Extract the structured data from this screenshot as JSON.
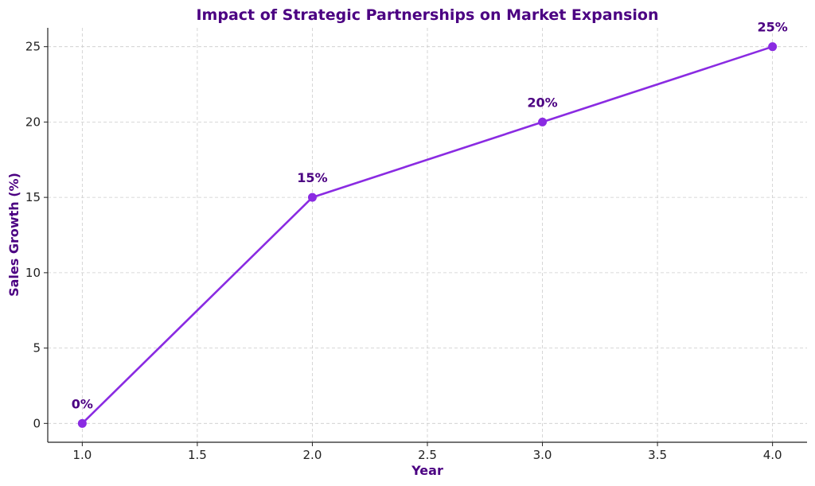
{
  "chart_data": {
    "type": "line",
    "title": "Impact of Strategic Partnerships on Market Expansion",
    "xlabel": "Year",
    "ylabel": "Sales Growth (%)",
    "xlim": [
      0.85,
      4.15
    ],
    "ylim": [
      -1.25,
      26.25
    ],
    "x_ticks": [
      1.0,
      1.5,
      2.0,
      2.5,
      3.0,
      3.5,
      4.0
    ],
    "x_tick_labels": [
      "1.0",
      "1.5",
      "2.0",
      "2.5",
      "3.0",
      "3.5",
      "4.0"
    ],
    "y_ticks": [
      0,
      5,
      10,
      15,
      20,
      25
    ],
    "y_tick_labels": [
      "0",
      "5",
      "10",
      "15",
      "20",
      "25"
    ],
    "grid": true,
    "series": [
      {
        "x": [
          1,
          2,
          3,
          4
        ],
        "y": [
          0,
          15,
          20,
          25
        ],
        "labels": [
          "0%",
          "15%",
          "20%",
          "25%"
        ],
        "color": "#8a2be2",
        "marker": "circle"
      }
    ],
    "title_color": "#4b0082",
    "label_color": "#4b0082"
  }
}
